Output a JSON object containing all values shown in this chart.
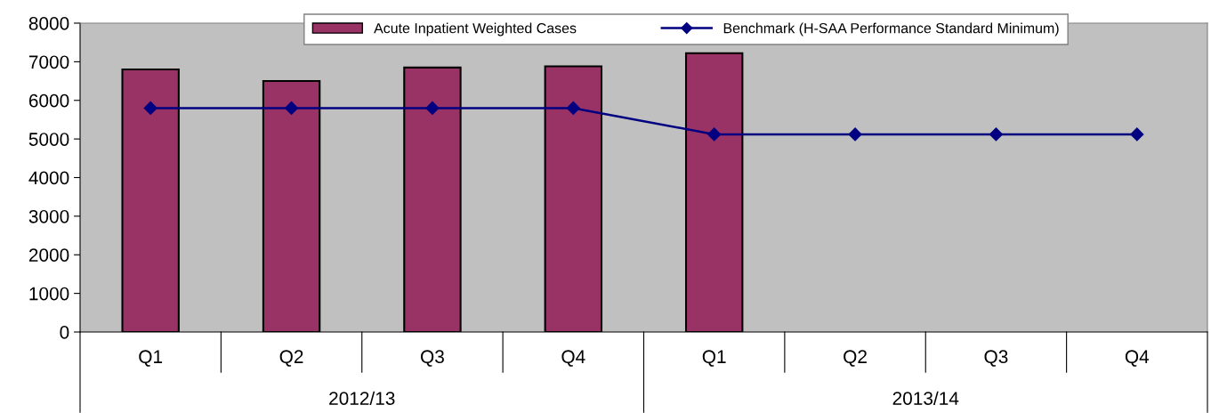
{
  "chart_data": {
    "type": "bar",
    "categories": [
      "Q1",
      "Q2",
      "Q3",
      "Q4",
      "Q1",
      "Q2",
      "Q3",
      "Q4"
    ],
    "series": [
      {
        "name": "Acute Inpatient Weighted Cases",
        "color": "#993366",
        "values": [
          6800,
          6500,
          6850,
          6880,
          7220,
          null,
          null,
          null
        ]
      },
      {
        "name": "Benchmark (H-SAA Performance Standard Minimum)",
        "type": "line",
        "color": "#000080",
        "marker": "diamond",
        "values": [
          5800,
          5800,
          5800,
          5800,
          5120,
          5120,
          5120,
          5120
        ]
      }
    ],
    "annotations": [
      "2012/13",
      "2013/14"
    ],
    "ylim": [
      0,
      8000
    ],
    "yticks": [
      0,
      1000,
      2000,
      3000,
      4000,
      5000,
      6000,
      7000,
      8000
    ],
    "grid": false,
    "legend": "top"
  }
}
